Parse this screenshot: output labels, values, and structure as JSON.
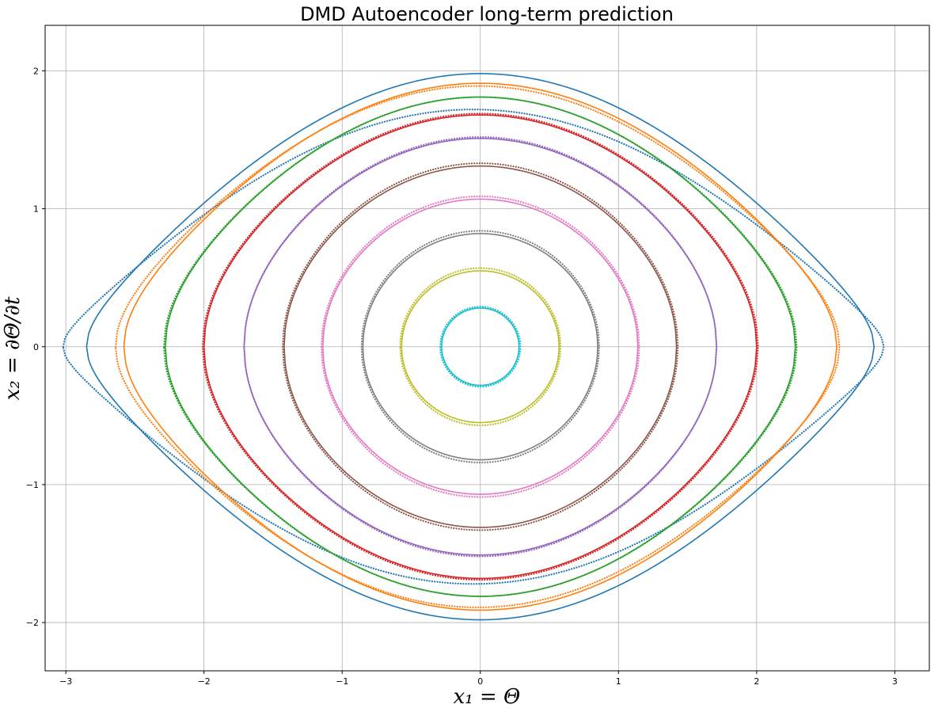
{
  "chart_data": {
    "type": "line",
    "title": "DMD Autoencoder long-term prediction",
    "xlabel": "x₁ = Θ",
    "ylabel": "x₂ = ∂Θ/∂t",
    "xlim": [
      -3.15,
      3.25
    ],
    "ylim": [
      -2.35,
      2.33
    ],
    "xticks": [
      -3,
      -2,
      -1,
      0,
      1,
      2,
      3
    ],
    "xtick_labels": [
      "−3",
      "−2",
      "−1",
      "0",
      "1",
      "2",
      "3"
    ],
    "yticks": [
      -2,
      -1,
      0,
      1,
      2
    ],
    "ytick_labels": [
      "−2",
      "−1",
      "0",
      "1",
      "2"
    ],
    "grid": true,
    "legend": "none",
    "encoding": "solid line = trajectory, dotted markers = long-term prediction; closed orbits of the pendulum phase portrait",
    "series": [
      {
        "color": "#1f77b4",
        "amplitude_theta": 2.85,
        "peak_velocity": 1.98,
        "pred_amplitude_theta": 2.97,
        "pred_peak_velocity": 1.72,
        "pred_shift": -0.05
      },
      {
        "color": "#ff7f0e",
        "amplitude_theta": 2.58,
        "peak_velocity": 1.91,
        "pred_amplitude_theta": 2.62,
        "pred_peak_velocity": 1.89,
        "pred_shift": -0.02
      },
      {
        "color": "#2ca02c",
        "amplitude_theta": 2.28,
        "peak_velocity": 1.81,
        "pred_amplitude_theta": 2.29,
        "pred_peak_velocity": 1.81,
        "pred_shift": 0.0
      },
      {
        "color": "#d62728",
        "amplitude_theta": 2.0,
        "peak_velocity": 1.68,
        "pred_amplitude_theta": 2.01,
        "pred_peak_velocity": 1.69,
        "pred_shift": 0.0
      },
      {
        "color": "#9467bd",
        "amplitude_theta": 1.71,
        "peak_velocity": 1.51,
        "pred_amplitude_theta": 1.71,
        "pred_peak_velocity": 1.52,
        "pred_shift": 0.0
      },
      {
        "color": "#8c564b",
        "amplitude_theta": 1.42,
        "peak_velocity": 1.31,
        "pred_amplitude_theta": 1.43,
        "pred_peak_velocity": 1.33,
        "pred_shift": 0.0
      },
      {
        "color": "#e377c2",
        "amplitude_theta": 1.14,
        "peak_velocity": 1.07,
        "pred_amplitude_theta": 1.15,
        "pred_peak_velocity": 1.09,
        "pred_shift": 0.0
      },
      {
        "color": "#7f7f7f",
        "amplitude_theta": 0.85,
        "peak_velocity": 0.82,
        "pred_amplitude_theta": 0.86,
        "pred_peak_velocity": 0.84,
        "pred_shift": 0.0
      },
      {
        "color": "#bcbd22",
        "amplitude_theta": 0.57,
        "peak_velocity": 0.55,
        "pred_amplitude_theta": 0.58,
        "pred_peak_velocity": 0.57,
        "pred_shift": 0.0
      },
      {
        "color": "#17becf",
        "amplitude_theta": 0.28,
        "peak_velocity": 0.28,
        "pred_amplitude_theta": 0.29,
        "pred_peak_velocity": 0.29,
        "pred_shift": 0.0
      }
    ]
  }
}
